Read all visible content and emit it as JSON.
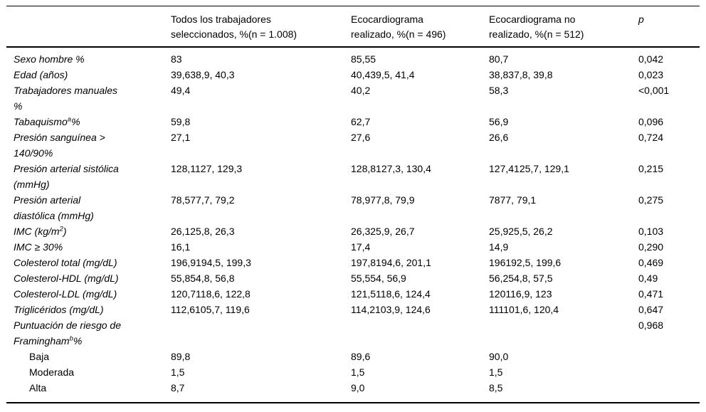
{
  "table": {
    "headers": [
      {
        "text": "",
        "italic": false
      },
      {
        "text": "Todos los trabajadores\nseleccionados, %(n = 1.008)",
        "italic": false
      },
      {
        "text": "Ecocardiograma\nrealizado, %(n = 496)",
        "italic": false
      },
      {
        "text": "Ecocardiograma no\nrealizado, %(n = 512)",
        "italic": true
      }
    ],
    "p_header": {
      "text": "p",
      "italic": true
    },
    "rows": [
      {
        "label": "Sexo hombre %",
        "indent": false,
        "values": [
          "83",
          "85,55",
          "80,7",
          "0,042"
        ]
      },
      {
        "label": "Edad (años)",
        "indent": false,
        "values": [
          "39,638,9, 40,3",
          "40,439,5, 41,4",
          "38,837,8, 39,8",
          "0,023"
        ]
      },
      {
        "label": "Trabajadores manuales\n%",
        "indent": false,
        "values": [
          "49,4",
          "40,2",
          "58,3",
          "<0,001"
        ]
      },
      {
        "label": "Tabaquismo",
        "sup": "a",
        "rest": "%",
        "indent": false,
        "values": [
          "59,8",
          "62,7",
          "56,9",
          "0,096"
        ]
      },
      {
        "label": "Presión sanguínea >\n140/90%",
        "indent": false,
        "values": [
          "27,1",
          "27,6",
          "26,6",
          "0,724"
        ]
      },
      {
        "label": "Presión arterial sistólica\n(mmHg)",
        "indent": false,
        "values": [
          "128,1127, 129,3",
          "128,8127,3, 130,4",
          "127,4125,7, 129,1",
          "0,215"
        ]
      },
      {
        "label": "Presión arterial\ndiastólica (mmHg)",
        "indent": false,
        "values": [
          "78,577,7, 79,2",
          "78,977,8, 79,9",
          "7877, 79,1",
          "0,275"
        ]
      },
      {
        "label": "IMC (kg/m",
        "sup": "2",
        "rest": ")",
        "indent": false,
        "values": [
          "26,125,8, 26,3",
          "26,325,9, 26,7",
          "25,925,5, 26,2",
          "0,103"
        ]
      },
      {
        "label": "IMC ≥ 30%",
        "indent": false,
        "values": [
          "16,1",
          "17,4",
          "14,9",
          "0,290"
        ]
      },
      {
        "label": "Colesterol total (mg/dL)",
        "indent": false,
        "values": [
          "196,9194,5, 199,3",
          "197,8194,6, 201,1",
          "196192,5, 199,6",
          "0,469"
        ]
      },
      {
        "label": "Colesterol-HDL (mg/dL)",
        "indent": false,
        "values": [
          "55,854,8, 56,8",
          "55,554, 56,9",
          "56,254,8, 57,5",
          "0,49"
        ]
      },
      {
        "label": "Colesterol-LDL (mg/dL)",
        "indent": false,
        "values": [
          "120,7118,6, 122,8",
          "121,5118,6, 124,4",
          "120116,9, 123",
          "0,471"
        ]
      },
      {
        "label": "Triglicéridos (mg/dL)",
        "indent": false,
        "values": [
          "112,6105,7, 119,6",
          "114,2103,9, 124,6",
          "111101,6, 120,4",
          "0,647"
        ]
      },
      {
        "label": "Puntuación de riesgo de\nFramingham",
        "sup": "b",
        "rest": "%",
        "indent": false,
        "values": [
          "",
          "",
          "",
          "0,968"
        ]
      },
      {
        "label": "Baja",
        "indent": true,
        "values": [
          "89,8",
          "89,6",
          "90,0",
          ""
        ]
      },
      {
        "label": "Moderada",
        "indent": true,
        "values": [
          "1,5",
          "1,5",
          "1,5",
          ""
        ]
      },
      {
        "label": "Alta",
        "indent": true,
        "values": [
          "8,7",
          "9,0",
          "8,5",
          ""
        ]
      }
    ]
  }
}
